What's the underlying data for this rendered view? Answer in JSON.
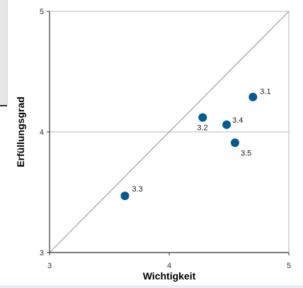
{
  "chart_data": {
    "type": "scatter",
    "title": "",
    "xlabel": "Wichtigkeit",
    "ylabel": "Erfüllungsgrad",
    "xlim": [
      3,
      5
    ],
    "ylim": [
      3,
      5
    ],
    "x_ticks": [
      "3",
      "4",
      "5"
    ],
    "y_ticks": [
      "3",
      "4",
      "5"
    ],
    "reference_line": "diagonal",
    "reference_hline": 4,
    "grid": false,
    "marker_color": "#005b96",
    "points": [
      {
        "label": "3.1",
        "x": 4.7,
        "y": 4.29
      },
      {
        "label": "3.2",
        "x": 4.28,
        "y": 4.12
      },
      {
        "label": "3.4",
        "x": 4.48,
        "y": 4.06
      },
      {
        "label": "3.5",
        "x": 4.55,
        "y": 3.91
      },
      {
        "label": "3.3",
        "x": 3.63,
        "y": 3.47
      }
    ]
  }
}
